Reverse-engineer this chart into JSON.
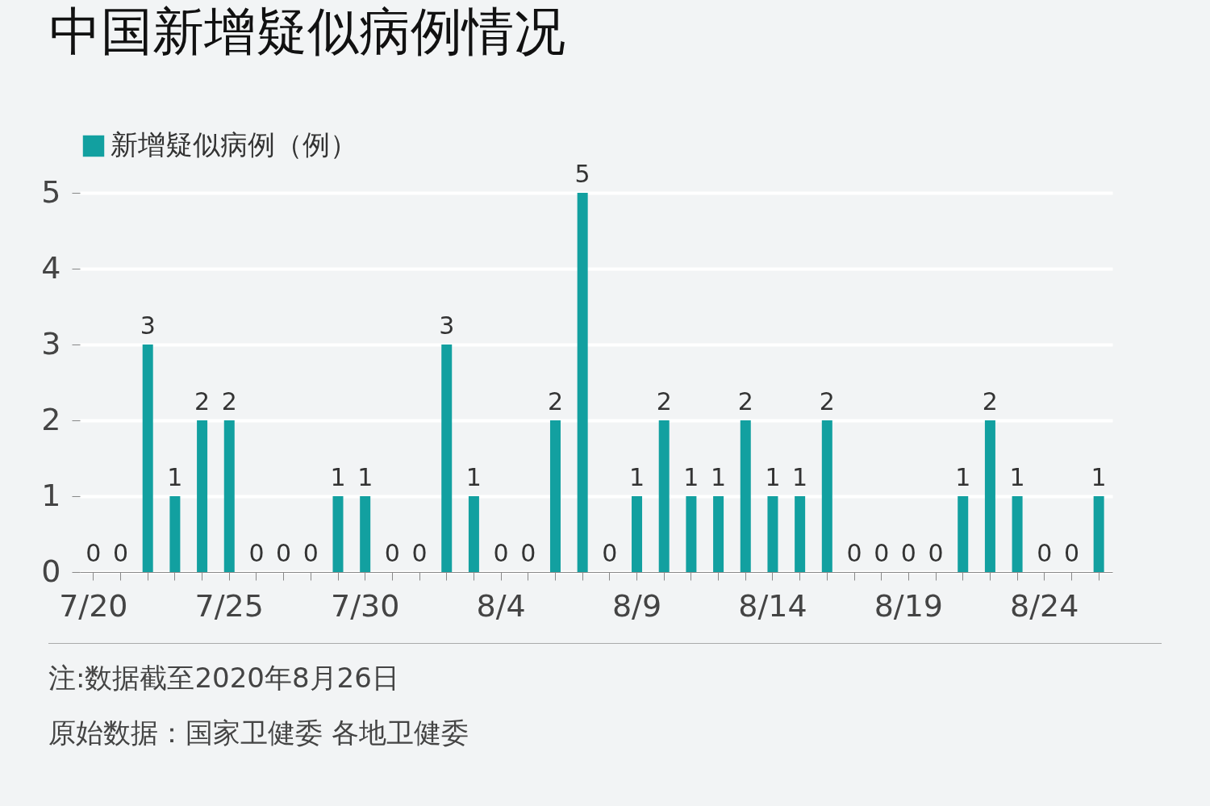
{
  "chart_data": {
    "type": "bar",
    "title": "中国新增疑似病例情况",
    "categories": [
      "7/20",
      null,
      null,
      null,
      null,
      "7/25",
      null,
      null,
      null,
      null,
      "7/30",
      null,
      null,
      null,
      null,
      "8/4",
      null,
      null,
      null,
      null,
      "8/9",
      null,
      null,
      null,
      null,
      "8/14",
      null,
      null,
      null,
      null,
      "8/19",
      null,
      null,
      null,
      null,
      "8/24",
      null,
      null
    ],
    "series": [
      {
        "name": "新增疑似病例（例）",
        "color": "#12a0a0",
        "values": [
          0,
          0,
          3,
          1,
          2,
          2,
          0,
          0,
          0,
          1,
          1,
          0,
          0,
          3,
          1,
          0,
          0,
          2,
          5,
          0,
          1,
          2,
          1,
          1,
          2,
          1,
          1,
          2,
          0,
          0,
          0,
          0,
          1,
          2,
          1,
          0,
          0,
          1
        ]
      }
    ],
    "ylim": [
      0,
      5
    ],
    "yticks": [
      0,
      1,
      2,
      3,
      4,
      5
    ],
    "grid": "y",
    "legend": "top left",
    "data_labels": true,
    "annotations": [
      "注:数据截至2020年8月26日",
      "原始数据：国家卫健委 各地卫健委"
    ]
  }
}
